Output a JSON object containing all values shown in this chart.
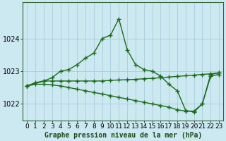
{
  "title": "Graphe pression niveau de la mer (hPa)",
  "bg_color": "#cce8f0",
  "grid_color": "#aaccdd",
  "line_color": "#1a6b1a",
  "marker": "+",
  "markersize": 4,
  "linewidth": 1.0,
  "xlim": [
    -0.5,
    23.5
  ],
  "ylim": [
    1021.5,
    1025.1
  ],
  "yticks": [
    1022,
    1023,
    1024
  ],
  "xticks": [
    0,
    1,
    2,
    3,
    4,
    5,
    6,
    7,
    8,
    9,
    10,
    11,
    12,
    13,
    14,
    15,
    16,
    17,
    18,
    19,
    20,
    21,
    22,
    23
  ],
  "xlabel_fontsize": 6.5,
  "ylabel_fontsize": 7,
  "title_fontsize": 7.0,
  "series": [
    {
      "x": [
        0,
        2,
        3,
        4,
        5,
        6,
        7,
        8,
        9,
        10,
        11,
        12,
        13,
        14,
        15,
        16,
        17,
        18,
        19,
        20,
        21,
        22,
        23
      ],
      "y": [
        1022.55,
        1022.7,
        1022.8,
        1023.0,
        1023.05,
        1023.2,
        1023.4,
        1023.55,
        1024.0,
        1024.1,
        1024.6,
        1023.65,
        1023.2,
        1023.05,
        1023.0,
        1022.85,
        1022.6,
        1022.4,
        1021.8,
        1021.75,
        1022.0,
        1022.9,
        1022.95
      ]
    },
    {
      "x": [
        0,
        1,
        2,
        3,
        4,
        5,
        6,
        7,
        8,
        9,
        10,
        11,
        12,
        13,
        14,
        15,
        16,
        17,
        18,
        19,
        20,
        21,
        22,
        23
      ],
      "y": [
        1022.55,
        1022.65,
        1022.7,
        1022.7,
        1022.7,
        1022.7,
        1022.7,
        1022.7,
        1022.7,
        1022.7,
        1022.72,
        1022.73,
        1022.74,
        1022.75,
        1022.77,
        1022.78,
        1022.8,
        1022.82,
        1022.84,
        1022.86,
        1022.88,
        1022.9,
        1022.92,
        1022.95
      ]
    },
    {
      "x": [
        0,
        1,
        2,
        3,
        4,
        5,
        6,
        7,
        8,
        9,
        10,
        11,
        12,
        13,
        14,
        15,
        16,
        17,
        18,
        19,
        20,
        21,
        22,
        23
      ],
      "y": [
        1022.55,
        1022.6,
        1022.6,
        1022.58,
        1022.55,
        1022.5,
        1022.45,
        1022.4,
        1022.35,
        1022.3,
        1022.25,
        1022.2,
        1022.15,
        1022.1,
        1022.05,
        1022.0,
        1021.95,
        1021.9,
        1021.82,
        1021.78,
        1021.78,
        1022.0,
        1022.85,
        1022.9
      ]
    }
  ]
}
